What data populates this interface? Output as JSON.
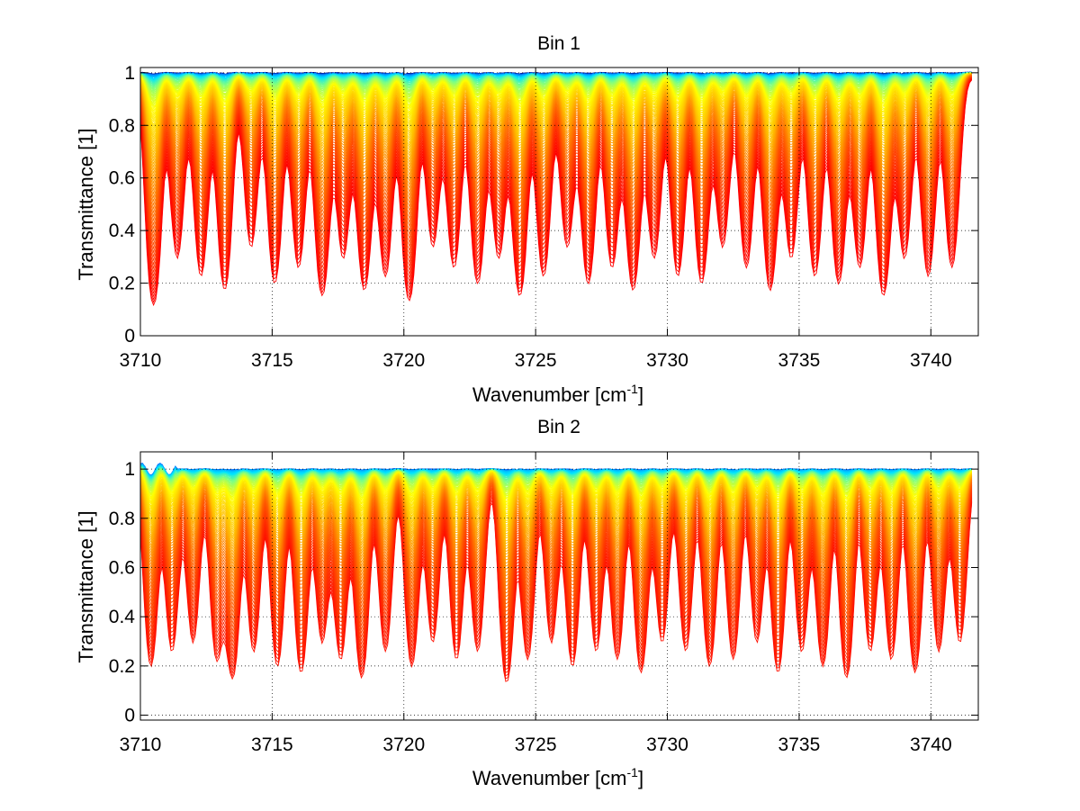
{
  "chart_data": [
    {
      "type": "line",
      "title": "Bin 1",
      "xlabel": "Wavenumber [cm",
      "xlabel_sup": "-1",
      "xlabel_end": "]",
      "ylabel": "Transmittance [1]",
      "xlim": [
        3710,
        3741.8
      ],
      "ylim": [
        0,
        1.02
      ],
      "xticks": [
        3710,
        3715,
        3720,
        3725,
        3730,
        3735,
        3740
      ],
      "xtick_labels": [
        "3710",
        "3715",
        "3720",
        "3725",
        "3730",
        "3735",
        "3740"
      ],
      "yticks": [
        0,
        0.2,
        0.4,
        0.6,
        0.8,
        1
      ],
      "ytick_labels": [
        "0",
        "0.2",
        "0.4",
        "0.6",
        "0.8",
        "1"
      ],
      "grid": true,
      "series_count": 150,
      "colormap": [
        "#00008f",
        "#0080ff",
        "#00e5ff",
        "#80ff80",
        "#ffff00",
        "#ffc000",
        "#ff6000",
        "#ff0000"
      ],
      "line_centers": [
        3710.5,
        3711.4,
        3712.3,
        3713.2,
        3714.2,
        3715.1,
        3716.0,
        3716.9,
        3717.7,
        3718.5,
        3719.3,
        3720.2,
        3721.1,
        3721.9,
        3722.8,
        3723.6,
        3724.4,
        3725.3,
        3726.2,
        3727.0,
        3727.9,
        3728.7,
        3729.5,
        3730.4,
        3731.3,
        3732.1,
        3733.0,
        3733.9,
        3734.7,
        3735.6,
        3736.5,
        3737.3,
        3738.2,
        3739.0,
        3739.9,
        3740.8
      ],
      "line_strengths": [
        1.6,
        0.9,
        1.1,
        1.3,
        0.8,
        1.2,
        1.0,
        1.4,
        0.9,
        1.3,
        1.1,
        1.5,
        0.8,
        1.0,
        1.2,
        0.9,
        1.4,
        1.1,
        0.8,
        1.2,
        1.0,
        1.3,
        0.9,
        1.1,
        1.2,
        0.8,
        1.0,
        1.3,
        0.9,
        1.1,
        1.2,
        1.0,
        1.4,
        0.9,
        1.1,
        1.0
      ],
      "line_width": 0.32
    },
    {
      "type": "line",
      "title": "Bin 2",
      "xlabel": "Wavenumber [cm",
      "xlabel_sup": "-1",
      "xlabel_end": "]",
      "ylabel": "Transmittance [1]",
      "xlim": [
        3710,
        3741.8
      ],
      "ylim": [
        -0.02,
        1.07
      ],
      "xticks": [
        3710,
        3715,
        3720,
        3725,
        3730,
        3735,
        3740
      ],
      "xtick_labels": [
        "3710",
        "3715",
        "3720",
        "3725",
        "3730",
        "3735",
        "3740"
      ],
      "yticks": [
        0,
        0.2,
        0.4,
        0.6,
        0.8,
        1
      ],
      "ytick_labels": [
        "0",
        "0.2",
        "0.4",
        "0.6",
        "0.8",
        "1"
      ],
      "grid": true,
      "series_count": 150,
      "colormap": [
        "#0050ff",
        "#00b0ff",
        "#00e5ff",
        "#80ff80",
        "#ffff00",
        "#ffc000",
        "#ff6000",
        "#ff1000"
      ],
      "line_centers": [
        3710.4,
        3711.2,
        3712.0,
        3712.9,
        3713.5,
        3714.3,
        3715.2,
        3716.1,
        3716.9,
        3717.6,
        3718.4,
        3719.3,
        3720.3,
        3721.1,
        3722.0,
        3722.8,
        3723.9,
        3724.7,
        3725.6,
        3726.4,
        3727.3,
        3728.1,
        3729.0,
        3729.8,
        3730.7,
        3731.6,
        3732.5,
        3733.4,
        3734.2,
        3735.1,
        3735.9,
        3736.8,
        3737.7,
        3738.5,
        3739.4,
        3740.3,
        3741.1
      ],
      "line_strengths": [
        1.2,
        1.0,
        0.9,
        1.1,
        1.4,
        1.0,
        1.2,
        1.3,
        0.9,
        1.1,
        1.4,
        1.0,
        1.2,
        0.9,
        1.1,
        1.0,
        1.5,
        1.1,
        0.9,
        1.2,
        1.0,
        1.1,
        1.3,
        0.9,
        1.0,
        1.2,
        1.1,
        0.9,
        1.3,
        1.0,
        1.2,
        1.4,
        1.0,
        1.1,
        1.3,
        1.0,
        0.9
      ],
      "line_width": 0.3
    }
  ]
}
